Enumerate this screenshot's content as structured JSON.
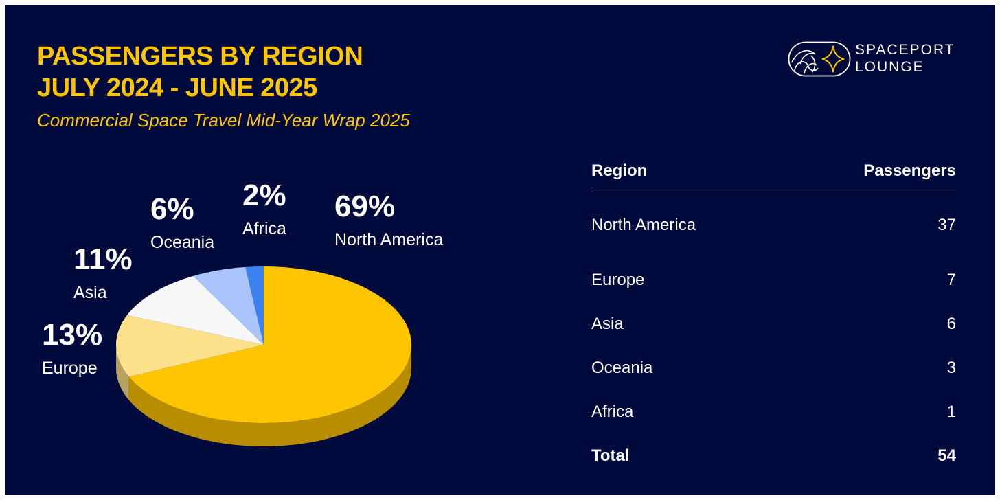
{
  "header": {
    "title_line1": "PASSENGERS BY REGION",
    "title_line2": "JULY 2024 - JUNE 2025",
    "subtitle": "Commercial Space Travel Mid-Year Wrap 2025"
  },
  "logo": {
    "line1": "SPACEPORT",
    "line2": "LOUNGE"
  },
  "colors": {
    "background": "#000a3c",
    "accent": "#ffc500",
    "north_america": "#ffc500",
    "europe": "#fde08a",
    "asia": "#f7f7f7",
    "oceania": "#a8c4fb",
    "africa": "#3c82f0"
  },
  "chart_data": {
    "type": "pie",
    "style": "3d",
    "slices": [
      {
        "name": "North America",
        "percent": 69,
        "label": "69%"
      },
      {
        "name": "Europe",
        "percent": 13,
        "label": "13%"
      },
      {
        "name": "Asia",
        "percent": 11,
        "label": "11%"
      },
      {
        "name": "Oceania",
        "percent": 6,
        "label": "6%"
      },
      {
        "name": "Africa",
        "percent": 2,
        "label": "2%"
      }
    ]
  },
  "table": {
    "headers": [
      "Region",
      "Passengers"
    ],
    "rows": [
      {
        "region": "North America",
        "passengers": "37"
      },
      {
        "region": "Europe",
        "passengers": "7"
      },
      {
        "region": "Asia",
        "passengers": "6"
      },
      {
        "region": "Oceania",
        "passengers": "3"
      },
      {
        "region": "Africa",
        "passengers": "1"
      }
    ],
    "total": {
      "label": "Total",
      "value": "54"
    }
  }
}
